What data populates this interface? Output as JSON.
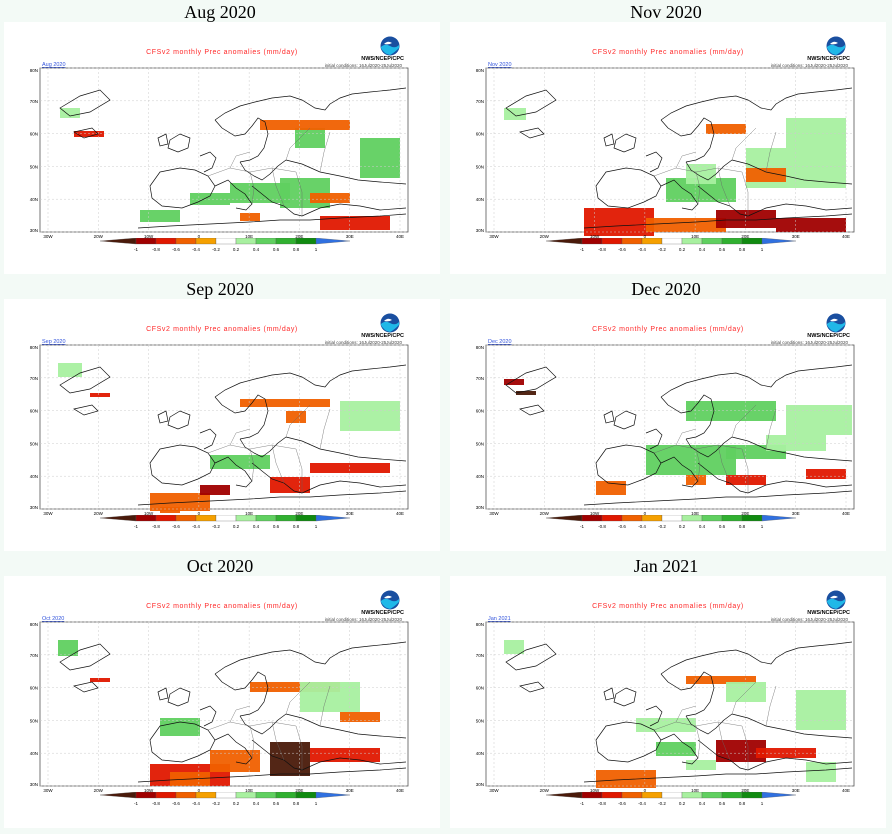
{
  "common": {
    "map_title": "CFSv2 monthly Prec anomalies (mm/day)",
    "org": "NWS/NCEP/CPC",
    "initial_conditions": "initial conditions: 16Jul2020-25Jul2020",
    "lat_labels": [
      "80N",
      "70N",
      "60N",
      "50N",
      "40N",
      "30N"
    ],
    "lon_labels": [
      "30W",
      "20W",
      "10W",
      "0",
      "10E",
      "20E",
      "30E",
      "40E"
    ],
    "colorbar": {
      "ticks": [
        "-1",
        "-0.8",
        "-0.6",
        "-0.4",
        "-0.2",
        "0.2",
        "0.4",
        "0.6",
        "0.8",
        "1"
      ],
      "colors": [
        "#4a1a0a",
        "#a00000",
        "#e01800",
        "#f06000",
        "#f5a000",
        "#ffffff",
        "#a8f0a0",
        "#60d060",
        "#30b030",
        "#108a10",
        "#3070e0"
      ]
    },
    "colors": {
      "land_line": "#111111",
      "grid": "#cccccc",
      "panel_bg": "#ffffff",
      "page_bg": "#f3faf6"
    }
  },
  "panels": [
    {
      "title": "Aug 2020",
      "month_label": "Aug 2020"
    },
    {
      "title": "Nov 2020",
      "month_label": "Nov 2020"
    },
    {
      "title": "Sep 2020",
      "month_label": "Sep 2020"
    },
    {
      "title": "Dec 2020",
      "month_label": "Dec 2020"
    },
    {
      "title": "Oct 2020",
      "month_label": "Oct 2020"
    },
    {
      "title": "Jan 2021",
      "month_label": "Jan 2021"
    }
  ]
}
